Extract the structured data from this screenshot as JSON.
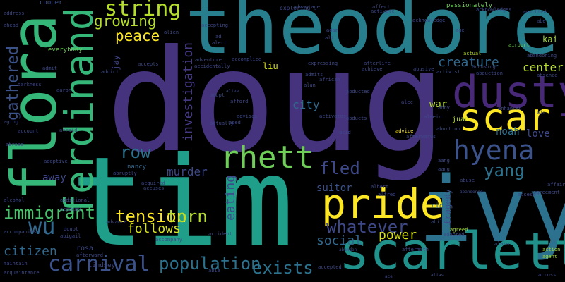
{
  "words": [
    {
      "text": "doug",
      "color": "#46337e",
      "orientation": "horizontal"
    },
    {
      "text": "tim",
      "color": "#1f9e89",
      "orientation": "horizontal"
    },
    {
      "text": "theodore",
      "color": "#277f8e",
      "orientation": "horizontal"
    },
    {
      "text": "flora",
      "color": "#35b779",
      "orientation": "vertical"
    },
    {
      "text": "ivy",
      "color": "#2c728e",
      "orientation": "horizontal"
    },
    {
      "text": "scarlett",
      "color": "#21918c",
      "orientation": "horizontal"
    },
    {
      "text": "pride",
      "color": "#fde725",
      "orientation": "horizontal"
    },
    {
      "text": "dusty",
      "color": "#482878",
      "orientation": "horizontal"
    },
    {
      "text": "scar",
      "color": "#fde725",
      "orientation": "horizontal"
    },
    {
      "text": "ferdinand",
      "color": "#35b779",
      "orientation": "vertical"
    },
    {
      "text": "rhett",
      "color": "#6ece58",
      "orientation": "horizontal"
    },
    {
      "text": "hyena",
      "color": "#3b528b",
      "orientation": "horizontal"
    },
    {
      "text": "carnival",
      "color": "#3b528b",
      "orientation": "horizontal"
    },
    {
      "text": "wu",
      "color": "#31688e",
      "orientation": "horizontal"
    },
    {
      "text": "string",
      "color": "#b5de2b",
      "orientation": "horizontal"
    },
    {
      "text": "yang",
      "color": "#2c728e",
      "orientation": "horizontal"
    },
    {
      "text": "whatever",
      "color": "#3e4989",
      "orientation": "horizontal"
    },
    {
      "text": "immigrant",
      "color": "#4ac16d",
      "orientation": "horizontal"
    },
    {
      "text": "tension",
      "color": "#fde725",
      "orientation": "horizontal"
    },
    {
      "text": "torn",
      "color": "#b5de2b",
      "orientation": "horizontal"
    },
    {
      "text": "exists",
      "color": "#2c728e",
      "orientation": "horizontal"
    },
    {
      "text": "population",
      "color": "#2c728e",
      "orientation": "horizontal"
    },
    {
      "text": "row",
      "color": "#2c728e",
      "orientation": "horizontal"
    },
    {
      "text": "fled",
      "color": "#3e4989",
      "orientation": "horizontal"
    },
    {
      "text": "growing",
      "color": "#b5de2b",
      "orientation": "horizontal"
    },
    {
      "text": "peace",
      "color": "#fde725",
      "orientation": "horizontal"
    },
    {
      "text": "gathered",
      "color": "#3b528b",
      "orientation": "vertical"
    },
    {
      "text": "creature",
      "color": "#31688e",
      "orientation": "horizontal"
    },
    {
      "text": "investigation",
      "color": "#443983",
      "orientation": "vertical"
    },
    {
      "text": "eating",
      "color": "#3e4989",
      "orientation": "vertical"
    },
    {
      "text": "citizen",
      "color": "#31688e",
      "orientation": "horizontal"
    },
    {
      "text": "follows",
      "color": "#d8e219",
      "orientation": "horizontal"
    },
    {
      "text": "power",
      "color": "#d8e219",
      "orientation": "horizontal"
    },
    {
      "text": "social",
      "color": "#31688e",
      "orientation": "horizontal"
    },
    {
      "text": "suitor",
      "color": "#3b528b",
      "orientation": "horizontal"
    },
    {
      "text": "murder",
      "color": "#3e4989",
      "orientation": "horizontal"
    },
    {
      "text": "city",
      "color": "#31688e",
      "orientation": "horizontal"
    },
    {
      "text": "center",
      "color": "#b5de2b",
      "orientation": "horizontal"
    },
    {
      "text": "love",
      "color": "#3e4989",
      "orientation": "horizontal"
    },
    {
      "text": "war",
      "color": "#b5de2b",
      "orientation": "horizontal"
    },
    {
      "text": "noah",
      "color": "#2c728e",
      "orientation": "horizontal"
    },
    {
      "text": "away",
      "color": "#3e4989",
      "orientation": "horizontal"
    },
    {
      "text": "tragedy",
      "color": "#3b528b",
      "orientation": "vertical"
    },
    {
      "text": "liu",
      "color": "#d8e219",
      "orientation": "horizontal"
    },
    {
      "text": "kai",
      "color": "#a0da39",
      "orientation": "horizontal"
    },
    {
      "text": "jay",
      "color": "#414487",
      "orientation": "vertical"
    },
    {
      "text": "juan",
      "color": "#b5de2b",
      "orientation": "horizontal"
    },
    {
      "text": "rig",
      "color": "#31688e",
      "orientation": "horizontal"
    },
    {
      "text": "rosa",
      "color": "#3e4989",
      "orientation": "horizontal"
    },
    {
      "text": "nancy",
      "color": "#31688e",
      "orientation": "horizontal"
    },
    {
      "text": "lindsey",
      "color": "#3e4989",
      "orientation": "horizontal"
    },
    {
      "text": "everybody",
      "color": "#6ece58",
      "orientation": "horizontal"
    },
    {
      "text": "cooper",
      "color": "#3b528b",
      "orientation": "horizontal"
    },
    {
      "text": "passionately",
      "color": "#6ece58",
      "orientation": "horizontal"
    },
    {
      "text": "alien",
      "color": "#3e4989",
      "orientation": "horizontal"
    },
    {
      "text": "accepting",
      "color": "#3e4989",
      "orientation": "horizontal"
    },
    {
      "text": "adam",
      "color": "#3e4989",
      "orientation": "horizontal"
    },
    {
      "text": "exploring",
      "color": "#3e4989",
      "orientation": "horizontal"
    },
    {
      "text": "admitted",
      "color": "#3e4989",
      "orientation": "horizontal"
    },
    {
      "text": "airport",
      "color": "#6ece58",
      "orientation": "horizontal"
    },
    {
      "text": "activist",
      "color": "#3e4989",
      "orientation": "horizontal"
    },
    {
      "text": "actual",
      "color": "#b5de2b",
      "orientation": "horizontal"
    },
    {
      "text": "advice",
      "color": "#fde725",
      "orientation": "horizontal"
    },
    {
      "text": "abduction",
      "color": "#3e4989",
      "orientation": "horizontal"
    },
    {
      "text": "abandoned",
      "color": "#3e4989",
      "orientation": "horizontal"
    },
    {
      "text": "access",
      "color": "#3e4989",
      "orientation": "horizontal"
    },
    {
      "text": "affair",
      "color": "#3e4989",
      "orientation": "horizontal"
    },
    {
      "text": "agreement",
      "color": "#3e4989",
      "orientation": "horizontal"
    },
    {
      "text": "action",
      "color": "#a0da39",
      "orientation": "horizontal"
    },
    {
      "text": "agent",
      "color": "#a0da39",
      "orientation": "horizontal"
    },
    {
      "text": "across",
      "color": "#3e4989",
      "orientation": "horizontal"
    },
    {
      "text": "alarm",
      "color": "#3e4989",
      "orientation": "horizontal"
    },
    {
      "text": "adopted",
      "color": "#3e4989",
      "orientation": "horizontal"
    },
    {
      "text": "agreed",
      "color": "#a0da39",
      "orientation": "horizontal"
    },
    {
      "text": "ability",
      "color": "#3e4989",
      "orientation": "horizontal"
    },
    {
      "text": "accomplice",
      "color": "#3e4989",
      "orientation": "horizontal"
    },
    {
      "text": "alcohol",
      "color": "#3e4989",
      "orientation": "horizontal"
    },
    {
      "text": "academy",
      "color": "#3e4989",
      "orientation": "horizontal"
    },
    {
      "text": "acquaintance",
      "color": "#3e4989",
      "orientation": "horizontal"
    },
    {
      "text": "abie",
      "color": "#3e4989",
      "orientation": "horizontal"
    },
    {
      "text": "accepted",
      "color": "#3e4989",
      "orientation": "horizontal"
    },
    {
      "text": "aftermath",
      "color": "#3e4989",
      "orientation": "horizontal"
    },
    {
      "text": "abandon",
      "color": "#3e4989",
      "orientation": "horizontal"
    },
    {
      "text": "alias",
      "color": "#3e4989",
      "orientation": "horizontal"
    },
    {
      "text": "ace",
      "color": "#3e4989",
      "orientation": "horizontal"
    },
    {
      "text": "address",
      "color": "#3e4989",
      "orientation": "horizontal"
    },
    {
      "text": "ahead",
      "color": "#3e4989",
      "orientation": "horizontal"
    },
    {
      "text": "admit",
      "color": "#3e4989",
      "orientation": "horizontal"
    },
    {
      "text": "adventure",
      "color": "#3e4989",
      "orientation": "horizontal"
    },
    {
      "text": "accidentally",
      "color": "#3e4989",
      "orientation": "horizontal"
    },
    {
      "text": "accident",
      "color": "#3e4989",
      "orientation": "horizontal"
    },
    {
      "text": "accompanies",
      "color": "#3e4989",
      "orientation": "horizontal"
    },
    {
      "text": "advance",
      "color": "#3e4989",
      "orientation": "horizontal"
    },
    {
      "text": "afterward",
      "color": "#3e4989",
      "orientation": "horizontal"
    },
    {
      "text": "abroad",
      "color": "#3e4989",
      "orientation": "horizontal"
    },
    {
      "text": "account",
      "color": "#3e4989",
      "orientation": "horizontal"
    },
    {
      "text": "aging",
      "color": "#3e4989",
      "orientation": "horizontal"
    },
    {
      "text": "adoptive",
      "color": "#3e4989",
      "orientation": "horizontal"
    },
    {
      "text": "abruptly",
      "color": "#3e4989",
      "orientation": "horizontal"
    },
    {
      "text": "accuses",
      "color": "#3e4989",
      "orientation": "horizontal"
    },
    {
      "text": "acquired",
      "color": "#3e4989",
      "orientation": "horizontal"
    },
    {
      "text": "alive",
      "color": "#3e4989",
      "orientation": "horizontal"
    },
    {
      "text": "advises",
      "color": "#3e4989",
      "orientation": "horizontal"
    },
    {
      "text": "aged",
      "color": "#3e4989",
      "orientation": "horizontal"
    },
    {
      "text": "adopt",
      "color": "#3e4989",
      "orientation": "horizontal"
    },
    {
      "text": "actually",
      "color": "#3e4989",
      "orientation": "horizontal"
    },
    {
      "text": "afford",
      "color": "#3e4989",
      "orientation": "horizontal"
    },
    {
      "text": "aaron",
      "color": "#3e4989",
      "orientation": "horizontal"
    },
    {
      "text": "darkness",
      "color": "#3e4989",
      "orientation": "horizontal"
    },
    {
      "text": "addict",
      "color": "#3e4989",
      "orientation": "horizontal"
    },
    {
      "text": "accepts",
      "color": "#3e4989",
      "orientation": "horizontal"
    },
    {
      "text": "admits",
      "color": "#3e4989",
      "orientation": "horizontal"
    },
    {
      "text": "african",
      "color": "#3e4989",
      "orientation": "horizontal"
    },
    {
      "text": "alan",
      "color": "#3e4989",
      "orientation": "horizontal"
    },
    {
      "text": "expressing",
      "color": "#3e4989",
      "orientation": "horizontal"
    },
    {
      "text": "afterlife",
      "color": "#3e4989",
      "orientation": "horizontal"
    },
    {
      "text": "achieve",
      "color": "#3e4989",
      "orientation": "horizontal"
    },
    {
      "text": "abusive",
      "color": "#3e4989",
      "orientation": "horizontal"
    },
    {
      "text": "activates",
      "color": "#3e4989",
      "orientation": "horizontal"
    },
    {
      "text": "abducted",
      "color": "#3e4989",
      "orientation": "horizontal"
    },
    {
      "text": "abducts",
      "color": "#3e4989",
      "orientation": "horizontal"
    },
    {
      "text": "alec",
      "color": "#3e4989",
      "orientation": "horizontal"
    },
    {
      "text": "abby",
      "color": "#3e4989",
      "orientation": "horizontal"
    },
    {
      "text": "enhanced",
      "color": "#3e4989",
      "orientation": "horizontal"
    },
    {
      "text": "almein",
      "color": "#3e4989",
      "orientation": "horizontal"
    },
    {
      "text": "abortion",
      "color": "#3e4989",
      "orientation": "horizontal"
    },
    {
      "text": "accusing",
      "color": "#3e4989",
      "orientation": "horizontal"
    },
    {
      "text": "abandoning",
      "color": "#3e4989",
      "orientation": "horizontal"
    },
    {
      "text": "absence",
      "color": "#3e4989",
      "orientation": "horizontal"
    },
    {
      "text": "acknowledge",
      "color": "#3e4989",
      "orientation": "horizontal"
    },
    {
      "text": "acknowledges",
      "color": "#3e4989",
      "orientation": "horizontal"
    },
    {
      "text": "activate",
      "color": "#3e4989",
      "orientation": "horizontal"
    },
    {
      "text": "affect",
      "color": "#3e4989",
      "orientation": "horizontal"
    },
    {
      "text": "advantage",
      "color": "#3e4989",
      "orientation": "horizontal"
    },
    {
      "text": "ad",
      "color": "#3e4989",
      "orientation": "horizontal"
    },
    {
      "text": "alert",
      "color": "#3e4989",
      "orientation": "horizontal"
    },
    {
      "text": "abe",
      "color": "#3e4989",
      "orientation": "horizontal"
    },
    {
      "text": "age",
      "color": "#3e4989",
      "orientation": "horizontal"
    },
    {
      "text": "air",
      "color": "#3e4989",
      "orientation": "horizontal"
    },
    {
      "text": "abuse",
      "color": "#3e4989",
      "orientation": "horizontal"
    },
    {
      "text": "aang",
      "color": "#3e4989",
      "orientation": "horizontal"
    },
    {
      "text": "albert",
      "color": "#3e4989",
      "orientation": "horizontal"
    },
    {
      "text": "alfred",
      "color": "#3e4989",
      "orientation": "horizontal"
    },
    {
      "text": "additional",
      "color": "#3e4989",
      "orientation": "horizontal"
    },
    {
      "text": "abigail",
      "color": "#3e4989",
      "orientation": "horizontal"
    },
    {
      "text": "acid",
      "color": "#3e4989",
      "orientation": "horizontal"
    },
    {
      "text": "doubt",
      "color": "#3e4989",
      "orientation": "horizontal"
    },
    {
      "text": "maintain",
      "color": "#3e4989",
      "orientation": "horizontal"
    },
    {
      "text": "accompany",
      "color": "#3e4989",
      "orientation": "horizontal"
    },
    {
      "text": "afterwards",
      "color": "#3e4989",
      "orientation": "horizontal"
    },
    {
      "text": "aang",
      "color": "#3e4989",
      "orientation": "horizontal"
    },
    {
      "text": "afraid",
      "color": "#3e4989",
      "orientation": "horizontal"
    },
    {
      "text": "alt",
      "color": "#3e4989",
      "orientation": "horizontal"
    }
  ]
}
